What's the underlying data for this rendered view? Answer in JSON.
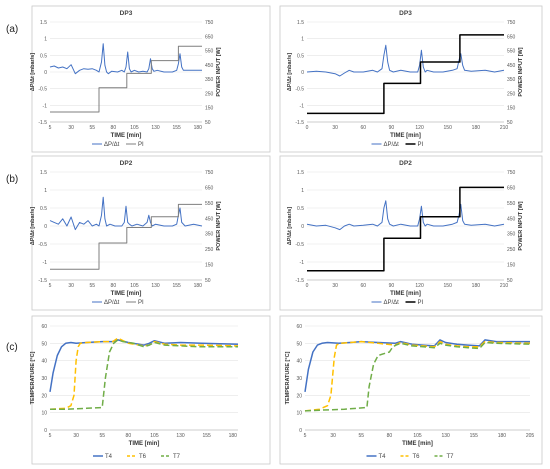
{
  "row_labels": [
    "(a)",
    "(b)",
    "(c)"
  ],
  "chart_data": [
    {
      "id": "a-left",
      "type": "line",
      "row": 0,
      "col": 0,
      "title": "DP3",
      "xlabel": "TIME [min]",
      "ylabel": "ΔP/Δt [mbar/s]",
      "y2label": "POWER INPUT [W]",
      "xlim": [
        5,
        185
      ],
      "xticks": [
        5,
        30,
        55,
        80,
        105,
        130,
        155,
        180
      ],
      "ylim": [
        -1.5,
        1.5
      ],
      "yticks": [
        -1.5,
        -1,
        -0.5,
        0,
        0.5,
        1,
        1.5
      ],
      "y2lim": [
        50,
        750
      ],
      "y2ticks": [
        50,
        150,
        250,
        350,
        450,
        550,
        650,
        750
      ],
      "legend": "bottom",
      "grid": true,
      "series": [
        {
          "name": "ΔP/Δt",
          "axis": "y",
          "color": "#4472c4",
          "width": 1,
          "dash": "",
          "x": [
            5,
            10,
            15,
            20,
            25,
            30,
            35,
            40,
            45,
            50,
            55,
            60,
            63,
            66,
            68,
            70,
            72,
            74,
            78,
            85,
            90,
            93,
            95,
            97,
            99,
            101,
            105,
            110,
            115,
            120,
            122,
            124,
            126,
            128,
            132,
            140,
            150,
            155,
            157,
            159,
            161,
            163,
            167,
            175,
            180,
            185
          ],
          "y": [
            0.15,
            0.18,
            0.12,
            0.15,
            0.1,
            0.22,
            -0.05,
            0.05,
            0.1,
            0.08,
            0.1,
            0.05,
            0.0,
            0.3,
            0.85,
            0.2,
            0.0,
            -0.05,
            0.02,
            0.0,
            0.05,
            0.0,
            0.15,
            0.6,
            0.1,
            0.0,
            0.05,
            0.0,
            0.02,
            0.0,
            0.1,
            0.4,
            0.1,
            0.02,
            0.05,
            0.0,
            0.0,
            0.05,
            0.25,
            0.55,
            0.15,
            0.05,
            0.05,
            0.05,
            0.05,
            0.05
          ]
        },
        {
          "name": "PI",
          "axis": "y2",
          "color": "#7f7f7f",
          "width": 1,
          "dash": "",
          "x": [
            5,
            63,
            63,
            96,
            96,
            125,
            125,
            157,
            157,
            185
          ],
          "y": [
            120,
            120,
            290,
            290,
            390,
            390,
            480,
            480,
            580,
            580
          ]
        }
      ]
    },
    {
      "id": "a-right",
      "type": "line",
      "row": 0,
      "col": 1,
      "title": "DP3",
      "xlabel": "TIME [min]",
      "ylabel": "ΔP/Δt [mbar/s]",
      "y2label": "POWER INPUT [W]",
      "xlim": [
        0,
        210
      ],
      "xticks": [
        0,
        30,
        60,
        90,
        120,
        150,
        180,
        210
      ],
      "ylim": [
        -1.5,
        1.5
      ],
      "yticks": [
        -1.5,
        -1,
        -0.5,
        0,
        0.5,
        1,
        1.5
      ],
      "y2lim": [
        50,
        750
      ],
      "y2ticks": [
        50,
        150,
        250,
        350,
        450,
        550,
        650,
        750
      ],
      "legend": "bottom",
      "grid": true,
      "series": [
        {
          "name": "ΔP/Δt",
          "axis": "y",
          "color": "#4472c4",
          "width": 1,
          "dash": "",
          "x": [
            0,
            10,
            20,
            30,
            35,
            40,
            45,
            50,
            60,
            70,
            75,
            80,
            82,
            84,
            86,
            88,
            92,
            100,
            110,
            118,
            120,
            122,
            124,
            126,
            128,
            135,
            145,
            155,
            160,
            162,
            164,
            166,
            168,
            175,
            190,
            200,
            210
          ],
          "y": [
            0.0,
            0.02,
            0.0,
            -0.05,
            -0.12,
            -0.03,
            0.05,
            0.0,
            0.0,
            0.05,
            0.0,
            0.1,
            0.5,
            0.8,
            0.3,
            0.05,
            0.0,
            0.05,
            0.0,
            0.0,
            0.2,
            0.65,
            0.15,
            0.0,
            0.05,
            0.0,
            0.0,
            0.05,
            0.1,
            0.35,
            0.55,
            0.2,
            0.05,
            0.02,
            0.05,
            0.0,
            0.05
          ]
        },
        {
          "name": "PI",
          "axis": "y2",
          "color": "#000000",
          "width": 1.5,
          "dash": "",
          "x": [
            0,
            82,
            82,
            121,
            121,
            163,
            163,
            210
          ],
          "y": [
            110,
            110,
            320,
            320,
            470,
            470,
            660,
            660
          ]
        }
      ]
    },
    {
      "id": "b-left",
      "type": "line",
      "row": 1,
      "col": 0,
      "title": "DP2",
      "xlabel": "TIME  [min]",
      "ylabel": "ΔP/Δt [mbar/s]",
      "y2label": "POWER INPUT [W]",
      "xlim": [
        5,
        185
      ],
      "xticks": [
        5,
        30,
        55,
        80,
        105,
        130,
        155,
        180
      ],
      "ylim": [
        -1.5,
        1.5
      ],
      "yticks": [
        -1.5,
        -1,
        -0.5,
        0,
        0.5,
        1,
        1.5
      ],
      "y2lim": [
        50,
        750
      ],
      "y2ticks": [
        50,
        150,
        250,
        350,
        450,
        550,
        650,
        750
      ],
      "legend": "bottom",
      "grid": true,
      "series": [
        {
          "name": "ΔP/Δt",
          "axis": "y",
          "color": "#4472c4",
          "width": 1,
          "dash": "",
          "x": [
            5,
            10,
            15,
            20,
            25,
            30,
            35,
            40,
            45,
            50,
            55,
            60,
            63,
            66,
            68,
            70,
            72,
            76,
            82,
            90,
            93,
            95,
            97,
            99,
            102,
            108,
            115,
            120,
            122,
            124,
            126,
            130,
            140,
            150,
            155,
            157,
            159,
            161,
            165,
            175,
            185
          ],
          "y": [
            0.15,
            0.1,
            0.05,
            0.2,
            0.0,
            0.25,
            -0.1,
            0.1,
            0.05,
            0.15,
            0.0,
            0.05,
            0.0,
            0.3,
            0.8,
            0.2,
            0.0,
            0.05,
            0.0,
            0.0,
            0.1,
            0.55,
            0.1,
            0.05,
            0.0,
            0.05,
            0.0,
            0.1,
            0.3,
            0.1,
            0.0,
            0.05,
            0.0,
            0.0,
            0.05,
            0.3,
            0.5,
            0.1,
            0.0,
            0.05,
            0.0
          ]
        },
        {
          "name": "PI",
          "axis": "y2",
          "color": "#7f7f7f",
          "width": 1,
          "dash": "",
          "x": [
            5,
            63,
            63,
            96,
            96,
            125,
            125,
            157,
            157,
            185
          ],
          "y": [
            120,
            120,
            290,
            290,
            390,
            390,
            460,
            460,
            540,
            540
          ]
        }
      ]
    },
    {
      "id": "b-right",
      "type": "line",
      "row": 1,
      "col": 1,
      "title": "DP2",
      "xlabel": "TIME  [min]",
      "ylabel": "ΔP/Δt [mbar/s]",
      "y2label": "POWER INPUT [W]",
      "xlim": [
        0,
        210
      ],
      "xticks": [
        0,
        30,
        60,
        90,
        120,
        150,
        180,
        210
      ],
      "ylim": [
        -1.5,
        1.5
      ],
      "yticks": [
        -1.5,
        -1,
        -0.5,
        0,
        0.5,
        1,
        1.5
      ],
      "y2lim": [
        50,
        750
      ],
      "y2ticks": [
        50,
        150,
        250,
        350,
        450,
        550,
        650,
        750
      ],
      "legend": "bottom",
      "grid": true,
      "series": [
        {
          "name": "ΔP/Δt",
          "axis": "y",
          "color": "#4472c4",
          "width": 1,
          "dash": "",
          "x": [
            0,
            10,
            20,
            30,
            35,
            40,
            45,
            50,
            60,
            70,
            75,
            80,
            82,
            84,
            86,
            88,
            92,
            100,
            110,
            118,
            120,
            122,
            124,
            126,
            128,
            135,
            145,
            155,
            160,
            162,
            164,
            166,
            168,
            175,
            190,
            200,
            210
          ],
          "y": [
            0.05,
            0.0,
            0.02,
            -0.05,
            -0.1,
            0.0,
            0.05,
            0.0,
            0.02,
            0.05,
            0.0,
            0.1,
            0.5,
            0.7,
            0.2,
            0.05,
            0.0,
            0.05,
            0.0,
            0.0,
            0.2,
            0.55,
            0.1,
            0.0,
            0.05,
            0.0,
            0.0,
            0.05,
            0.1,
            0.3,
            0.6,
            0.15,
            0.05,
            0.02,
            0.05,
            0.0,
            0.05
          ]
        },
        {
          "name": "PI",
          "axis": "y2",
          "color": "#000000",
          "width": 1.5,
          "dash": "",
          "x": [
            0,
            82,
            82,
            121,
            121,
            163,
            163,
            210
          ],
          "y": [
            110,
            110,
            320,
            320,
            460,
            460,
            650,
            650
          ]
        }
      ]
    },
    {
      "id": "c-left",
      "type": "line",
      "row": 2,
      "col": 0,
      "title": "",
      "xlabel": "TIME  [min]",
      "ylabel": "TEMPERATURE [°C]",
      "y2label": "",
      "xlim": [
        5,
        185
      ],
      "xticks": [
        5,
        30,
        55,
        80,
        105,
        130,
        155,
        180
      ],
      "ylim": [
        0,
        60
      ],
      "yticks": [
        0,
        10,
        20,
        30,
        40,
        50,
        60
      ],
      "legend": "bottom",
      "grid": true,
      "series": [
        {
          "name": "T4",
          "axis": "y",
          "color": "#4472c4",
          "width": 1.5,
          "dash": "",
          "x": [
            5,
            8,
            12,
            16,
            20,
            25,
            30,
            40,
            55,
            65,
            70,
            80,
            95,
            100,
            105,
            115,
            130,
            150,
            185
          ],
          "y": [
            22,
            33,
            43,
            48,
            50,
            50.5,
            50,
            50.5,
            51,
            51,
            52,
            50.5,
            49,
            50,
            51.5,
            50,
            50.5,
            50,
            49.5
          ]
        },
        {
          "name": "T6",
          "axis": "y",
          "color": "#ffc000",
          "width": 1.5,
          "dash": "6,3",
          "x": [
            5,
            20,
            25,
            28,
            30,
            32,
            34,
            40,
            55,
            65,
            70,
            80,
            95,
            100,
            105,
            115,
            130,
            150,
            185
          ],
          "y": [
            12,
            12.5,
            14,
            20,
            40,
            48,
            50,
            50.5,
            51,
            51,
            53,
            50,
            48.5,
            49,
            51,
            49.5,
            49,
            49,
            48.5
          ]
        },
        {
          "name": "T7",
          "axis": "y",
          "color": "#70ad47",
          "width": 1.5,
          "dash": "6,3",
          "x": [
            5,
            20,
            40,
            55,
            58,
            62,
            66,
            70,
            75,
            85,
            95,
            100,
            105,
            115,
            130,
            150,
            185
          ],
          "y": [
            12,
            12,
            12.5,
            13,
            30,
            45,
            50,
            52,
            51,
            50,
            48,
            49,
            50.5,
            49,
            48.5,
            48,
            48
          ]
        }
      ]
    },
    {
      "id": "c-right",
      "type": "line",
      "row": 2,
      "col": 1,
      "title": "",
      "xlabel": "TIME [min]",
      "ylabel": "TEMPERATURE [°C]",
      "y2label": "",
      "xlim": [
        5,
        205
      ],
      "xticks": [
        5,
        30,
        55,
        80,
        105,
        130,
        155,
        180,
        205
      ],
      "ylim": [
        0,
        60
      ],
      "yticks": [
        0,
        10,
        20,
        30,
        40,
        50,
        60
      ],
      "legend": "bottom",
      "grid": true,
      "series": [
        {
          "name": "T4",
          "axis": "y",
          "color": "#4472c4",
          "width": 1.5,
          "dash": "",
          "x": [
            5,
            8,
            12,
            16,
            20,
            25,
            35,
            45,
            55,
            70,
            85,
            90,
            100,
            110,
            120,
            125,
            130,
            140,
            150,
            160,
            165,
            175,
            205
          ],
          "y": [
            22,
            35,
            45,
            49,
            50,
            50.5,
            50,
            50.5,
            51,
            50.5,
            50,
            51,
            49.5,
            49,
            48.5,
            52,
            50.5,
            49.5,
            49,
            48.5,
            52,
            51,
            51
          ]
        },
        {
          "name": "T6",
          "axis": "y",
          "color": "#ffc000",
          "width": 1.5,
          "dash": "6,3",
          "x": [
            5,
            18,
            25,
            28,
            31,
            33,
            36,
            45,
            55,
            70,
            85,
            90,
            100,
            110,
            120,
            125,
            130,
            140,
            150,
            160,
            165,
            175,
            205
          ],
          "y": [
            11,
            12,
            14,
            20,
            42,
            49,
            50,
            50.5,
            51,
            50,
            49,
            50.5,
            49,
            48.5,
            48,
            51,
            49.5,
            48.5,
            48,
            48,
            51,
            50.5,
            50
          ]
        },
        {
          "name": "T7",
          "axis": "y",
          "color": "#70ad47",
          "width": 1.5,
          "dash": "6,3",
          "x": [
            5,
            20,
            40,
            60,
            62,
            66,
            70,
            75,
            80,
            83,
            86,
            90,
            100,
            110,
            120,
            125,
            130,
            140,
            150,
            160,
            165,
            175,
            205
          ],
          "y": [
            11,
            11.5,
            12,
            13,
            25,
            38,
            43,
            44,
            45,
            48,
            49,
            50,
            48.5,
            48,
            47.5,
            50,
            49,
            48,
            47.5,
            47,
            50.5,
            50,
            49.5
          ]
        }
      ]
    }
  ]
}
